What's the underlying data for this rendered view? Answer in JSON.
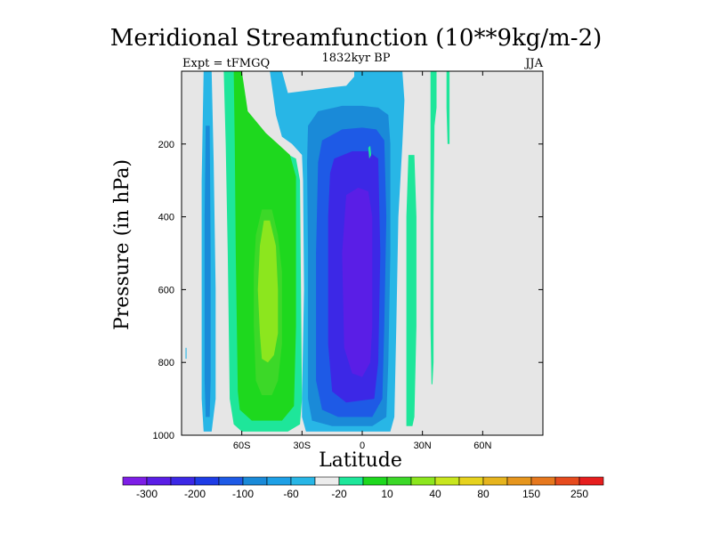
{
  "chart_data": {
    "type": "heatmap",
    "title": "Meridional Streamfunction (10**9kg/m-2)",
    "subtitle_left": "Expt = tFMGQ",
    "subtitle_center": "1832kyr BP",
    "subtitle_right": "JJA",
    "xlabel": "Latitude",
    "ylabel": "Pressure (in hPa)",
    "xlim": [
      -90,
      90
    ],
    "ylim": [
      0,
      1000
    ],
    "y_inverted": true,
    "x_ticks": [
      {
        "value": -60,
        "label": "60S"
      },
      {
        "value": -30,
        "label": "30S"
      },
      {
        "value": 0,
        "label": "0"
      },
      {
        "value": 30,
        "label": "30N"
      },
      {
        "value": 60,
        "label": "60N"
      }
    ],
    "y_ticks": [
      {
        "value": 200,
        "label": "200"
      },
      {
        "value": 400,
        "label": "400"
      },
      {
        "value": 600,
        "label": "600"
      },
      {
        "value": 800,
        "label": "800"
      },
      {
        "value": 1000,
        "label": "1000"
      }
    ],
    "background_color": "#e6e6e6",
    "contour_regions": [
      {
        "level": -20,
        "color": "#28b6e6",
        "points": [
          [
            -79,
            0
          ],
          [
            -75,
            0
          ],
          [
            -74,
            250
          ],
          [
            -73,
            600
          ],
          [
            -73,
            900
          ],
          [
            -75,
            990
          ],
          [
            -79,
            990
          ],
          [
            -80,
            900
          ],
          [
            -80,
            300
          ]
        ]
      },
      {
        "level": -60,
        "color": "#1a8ad8",
        "points": [
          [
            -78,
            150
          ],
          [
            -76,
            150
          ],
          [
            -75.5,
            500
          ],
          [
            -75.5,
            850
          ],
          [
            -76,
            950
          ],
          [
            -78,
            950
          ],
          [
            -78.5,
            850
          ],
          [
            -78.5,
            400
          ]
        ]
      },
      {
        "level": -20,
        "color": "#28b6e6",
        "points": [
          [
            -88,
            760
          ],
          [
            -87.5,
            760
          ],
          [
            -87.5,
            790
          ],
          [
            -88,
            790
          ]
        ]
      },
      {
        "level": 10,
        "color": "#1ee69a",
        "points": [
          [
            -69,
            0
          ],
          [
            -64,
            0
          ],
          [
            -62,
            80
          ],
          [
            -55,
            150
          ],
          [
            -45,
            190
          ],
          [
            -40,
            220
          ],
          [
            -33,
            240
          ],
          [
            -31,
            300
          ],
          [
            -30,
            900
          ],
          [
            -31,
            970
          ],
          [
            -37,
            990
          ],
          [
            -60,
            990
          ],
          [
            -64,
            970
          ],
          [
            -66,
            900
          ],
          [
            -67,
            500
          ],
          [
            -68,
            200
          ]
        ]
      },
      {
        "level": 20,
        "color": "#1ed81e",
        "points": [
          [
            -64,
            0
          ],
          [
            -60,
            0
          ],
          [
            -57,
            110
          ],
          [
            -48,
            170
          ],
          [
            -42,
            200
          ],
          [
            -36,
            230
          ],
          [
            -33,
            290
          ],
          [
            -33,
            700
          ],
          [
            -34,
            920
          ],
          [
            -40,
            960
          ],
          [
            -55,
            960
          ],
          [
            -61,
            930
          ],
          [
            -62,
            880
          ],
          [
            -63,
            500
          ],
          [
            -63.5,
            200
          ]
        ]
      },
      {
        "level": 40,
        "color": "#3cd828",
        "points": [
          [
            -50,
            380
          ],
          [
            -45,
            380
          ],
          [
            -42,
            450
          ],
          [
            -40,
            550
          ],
          [
            -40,
            750
          ],
          [
            -42,
            850
          ],
          [
            -45,
            890
          ],
          [
            -50,
            890
          ],
          [
            -53,
            850
          ],
          [
            -54,
            700
          ],
          [
            -54,
            550
          ],
          [
            -53,
            450
          ]
        ]
      },
      {
        "level": 80,
        "color": "#8ce61e",
        "points": [
          [
            -49,
            410
          ],
          [
            -46,
            410
          ],
          [
            -43,
            480
          ],
          [
            -42,
            600
          ],
          [
            -42,
            720
          ],
          [
            -44,
            780
          ],
          [
            -47,
            800
          ],
          [
            -50,
            790
          ],
          [
            -51,
            720
          ],
          [
            -52,
            600
          ],
          [
            -51,
            480
          ]
        ]
      },
      {
        "level": -20,
        "color": "#28b6e6",
        "points": [
          [
            -46,
            0
          ],
          [
            -40,
            0
          ],
          [
            -37,
            60
          ],
          [
            -30,
            55
          ],
          [
            -23,
            50
          ],
          [
            -16,
            45
          ],
          [
            -8,
            40
          ],
          [
            -4,
            15
          ],
          [
            -4,
            0
          ],
          [
            20,
            0
          ],
          [
            21,
            80
          ],
          [
            20,
            200
          ],
          [
            18,
            400
          ],
          [
            17,
            700
          ],
          [
            16,
            950
          ],
          [
            14,
            990
          ],
          [
            -28,
            990
          ],
          [
            -30,
            950
          ],
          [
            -30,
            900
          ],
          [
            -29,
            600
          ],
          [
            -29.5,
            300
          ],
          [
            -30,
            230
          ],
          [
            -35,
            200
          ],
          [
            -40,
            180
          ],
          [
            -43,
            120
          ]
        ]
      },
      {
        "level": -60,
        "color": "#1a8ad8",
        "points": [
          [
            -27,
            150
          ],
          [
            -22,
            110
          ],
          [
            -10,
            95
          ],
          [
            0,
            95
          ],
          [
            8,
            100
          ],
          [
            13,
            120
          ],
          [
            14,
            200
          ],
          [
            14,
            500
          ],
          [
            13,
            800
          ],
          [
            12,
            950
          ],
          [
            5,
            975
          ],
          [
            -15,
            975
          ],
          [
            -25,
            960
          ],
          [
            -27,
            900
          ],
          [
            -27,
            500
          ],
          [
            -27.5,
            250
          ]
        ]
      },
      {
        "level": -100,
        "color": "#1e5ae6",
        "points": [
          [
            -20,
            190
          ],
          [
            -10,
            160
          ],
          [
            0,
            155
          ],
          [
            7,
            160
          ],
          [
            11,
            190
          ],
          [
            12,
            400
          ],
          [
            11,
            700
          ],
          [
            10,
            900
          ],
          [
            5,
            950
          ],
          [
            -12,
            950
          ],
          [
            -20,
            930
          ],
          [
            -23,
            850
          ],
          [
            -23,
            500
          ],
          [
            -22,
            250
          ]
        ]
      },
      {
        "level": -200,
        "color": "#3c28e6",
        "points": [
          [
            -14,
            240
          ],
          [
            -5,
            220
          ],
          [
            3,
            220
          ],
          [
            8,
            240
          ],
          [
            9,
            500
          ],
          [
            8,
            800
          ],
          [
            6,
            900
          ],
          [
            -8,
            910
          ],
          [
            -15,
            880
          ],
          [
            -17,
            750
          ],
          [
            -17,
            400
          ],
          [
            -16,
            280
          ]
        ]
      },
      {
        "level": -300,
        "color": "#5a1ee6",
        "points": [
          [
            -8,
            340
          ],
          [
            -2,
            320
          ],
          [
            3,
            330
          ],
          [
            5,
            400
          ],
          [
            5,
            700
          ],
          [
            4,
            800
          ],
          [
            0,
            840
          ],
          [
            -5,
            830
          ],
          [
            -9,
            760
          ],
          [
            -10,
            500
          ]
        ]
      },
      {
        "level": 10,
        "color": "#1ee69a",
        "points": [
          [
            23,
            230
          ],
          [
            26,
            230
          ],
          [
            27,
            400
          ],
          [
            27,
            700
          ],
          [
            26,
            950
          ],
          [
            25,
            975
          ],
          [
            22,
            975
          ],
          [
            22,
            700
          ],
          [
            22,
            400
          ]
        ]
      },
      {
        "level": 10,
        "color": "#1ee69a",
        "points": [
          [
            34,
            0
          ],
          [
            37,
            0
          ],
          [
            37,
            100
          ],
          [
            36,
            150
          ],
          [
            35.5,
            400
          ],
          [
            35.5,
            800
          ],
          [
            35,
            860
          ],
          [
            34.5,
            860
          ],
          [
            34,
            700
          ],
          [
            34,
            400
          ],
          [
            34,
            100
          ]
        ]
      },
      {
        "level": 10,
        "color": "#1ee69a",
        "points": [
          [
            42,
            0
          ],
          [
            43.5,
            0
          ],
          [
            43.5,
            200
          ],
          [
            42.5,
            200
          ],
          [
            42,
            100
          ]
        ]
      },
      {
        "level": 10,
        "color": "#1ee69a",
        "points": [
          [
            3,
            210
          ],
          [
            4,
            205
          ],
          [
            4.5,
            230
          ],
          [
            3.5,
            240
          ]
        ]
      }
    ],
    "colorbar": {
      "labels": [
        "-300",
        "-200",
        "-100",
        "-60",
        "-20",
        "10",
        "40",
        "80",
        "150",
        "250"
      ],
      "colors": [
        "#7d1ee6",
        "#5a1ee6",
        "#3c28e6",
        "#1e3ce6",
        "#1e5ae6",
        "#1a8ad8",
        "#1ea0e6",
        "#28b6e6",
        "#ececec",
        "#1ee69a",
        "#1ed81e",
        "#3cd828",
        "#8ce61e",
        "#c8e61e",
        "#e6d21e",
        "#e6b41e",
        "#e6961e",
        "#e6781e",
        "#e64b1e",
        "#e61e1e"
      ]
    }
  }
}
